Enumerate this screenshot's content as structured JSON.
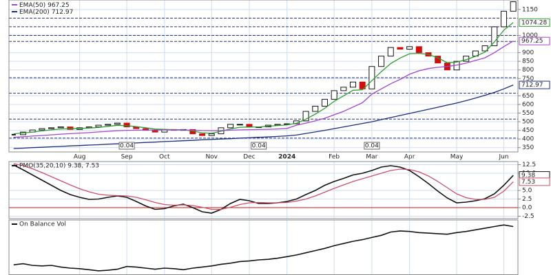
{
  "chart_data": [
    {
      "type": "candlestick",
      "categories": [
        null,
        null,
        null,
        null,
        null,
        null,
        null,
        "Aug",
        null,
        null,
        null,
        null,
        "Sep",
        null,
        null,
        null,
        "Oct",
        null,
        null,
        null,
        null,
        "Nov",
        null,
        null,
        null,
        "Dec",
        null,
        null,
        null,
        "2024",
        null,
        null,
        null,
        null,
        "Feb",
        null,
        null,
        null,
        "Mar",
        null,
        null,
        null,
        "Apr",
        null,
        null,
        null,
        null,
        "May",
        null,
        null,
        null,
        null,
        "Jun",
        null
      ],
      "close": [
        425,
        440,
        452,
        460,
        465,
        470,
        455,
        465,
        470,
        480,
        485,
        492,
        470,
        460,
        450,
        440,
        455,
        450,
        455,
        430,
        420,
        430,
        465,
        485,
        485,
        470,
        470,
        480,
        485,
        488,
        505,
        560,
        590,
        630,
        680,
        700,
        730,
        690,
        820,
        880,
        930,
        920,
        935,
        900,
        880,
        840,
        800,
        850,
        880,
        910,
        940,
        1050,
        1140,
        1195
      ],
      "up_color": "#111111",
      "down_color": "#d01010",
      "series": [
        {
          "color": "#2e9a2e",
          "values": [
            430,
            435,
            440,
            447,
            453,
            458,
            459,
            461,
            463,
            467,
            473,
            479,
            477,
            472,
            465,
            457,
            456,
            454,
            454,
            446,
            436,
            433,
            445,
            458,
            468,
            469,
            470,
            474,
            478,
            482,
            491,
            515,
            544,
            578,
            618,
            650,
            682,
            685,
            738,
            790,
            837,
            869,
            894,
            896,
            890,
            870,
            842,
            845,
            859,
            879,
            903,
            962,
            1030,
            1074.28
          ]
        },
        {
          "name": "EMA(50)",
          "color": "#a046c8",
          "values": [
            410,
            413,
            417,
            420,
            424,
            428,
            431,
            434,
            437,
            441,
            444,
            448,
            450,
            451,
            452,
            452,
            452,
            452,
            452,
            451,
            449,
            448,
            449,
            451,
            453,
            454,
            455,
            456,
            458,
            461,
            480,
            492,
            505,
            520,
            540,
            560,
            585,
            610,
            660,
            690,
            720,
            745,
            775,
            795,
            808,
            815,
            820,
            828,
            840,
            855,
            870,
            900,
            935,
            967.25
          ]
        },
        {
          "name": "EMA(200)",
          "color": "#1c2a78",
          "values": [
            345,
            347,
            350,
            352,
            355,
            357,
            360,
            362,
            365,
            367,
            370,
            372,
            375,
            377,
            380,
            382,
            385,
            387,
            390,
            392,
            395,
            397,
            400,
            402,
            405,
            407,
            410,
            412,
            415,
            418,
            423,
            432,
            441,
            450,
            460,
            470,
            480,
            490,
            500,
            512,
            524,
            536,
            548,
            560,
            572,
            584,
            596,
            608,
            622,
            637,
            653,
            670,
            690,
            712.97
          ]
        }
      ],
      "dividends": [
        null,
        null,
        null,
        null,
        null,
        null,
        null,
        null,
        null,
        null,
        null,
        null,
        0.04,
        null,
        null,
        null,
        null,
        null,
        null,
        null,
        null,
        null,
        null,
        null,
        null,
        null,
        0.04,
        null,
        null,
        null,
        null,
        null,
        null,
        null,
        null,
        null,
        null,
        null,
        0.04,
        null,
        null,
        null,
        null,
        null,
        null,
        null,
        null,
        null,
        null,
        null,
        null,
        null,
        null,
        null
      ],
      "reference_lines": [
        1100,
        1050,
        1000,
        965,
        755,
        665,
        515,
        405
      ],
      "reference_color": "#23317a",
      "ylim": [
        325,
        1205
      ],
      "yticks": [
        350,
        400,
        450,
        500,
        550,
        600,
        650,
        750,
        800,
        850,
        900,
        1000,
        1150
      ],
      "grid": true
    },
    {
      "type": "line",
      "title": "PMO(35,20,10) 9.38, 7.53",
      "series": [
        {
          "color": "#111111",
          "values": [
            12.4,
            11.0,
            9.5,
            8.0,
            6.5,
            5.0,
            3.8,
            3.0,
            2.4,
            2.5,
            3.0,
            3.4,
            3.0,
            1.8,
            0.5,
            -0.5,
            -0.3,
            0.5,
            1.0,
            0.0,
            -1.2,
            -1.6,
            -0.5,
            1.2,
            2.4,
            2.0,
            1.2,
            1.2,
            1.4,
            1.8,
            2.5,
            3.8,
            5.0,
            6.5,
            7.6,
            8.5,
            9.5,
            10.0,
            10.8,
            11.8,
            12.2,
            11.8,
            10.8,
            9.0,
            7.0,
            4.8,
            2.8,
            1.4,
            1.6,
            2.0,
            2.6,
            4.0,
            6.5,
            9.38
          ]
        },
        {
          "color": "#c8506a",
          "values": [
            12.8,
            12.2,
            11.3,
            10.2,
            9.0,
            7.8,
            6.6,
            5.5,
            4.6,
            3.9,
            3.6,
            3.5,
            3.4,
            3.0,
            2.3,
            1.5,
            0.9,
            0.7,
            0.8,
            0.6,
            0.1,
            -0.5,
            -0.5,
            0.1,
            0.9,
            1.4,
            1.5,
            1.4,
            1.4,
            1.5,
            1.9,
            2.5,
            3.4,
            4.5,
            5.6,
            6.6,
            7.6,
            8.4,
            9.2,
            10.0,
            10.8,
            11.2,
            11.1,
            10.4,
            9.2,
            7.6,
            5.8,
            4.0,
            2.9,
            2.4,
            2.4,
            3.0,
            4.8,
            7.53
          ]
        }
      ],
      "reference_lines": [
        0
      ],
      "reference_color": "#cc1111",
      "ylim": [
        -3.2,
        13.4
      ],
      "yticks": [
        12.5,
        {
          "value": 10,
          "label": "10.0"
        },
        {
          "value": 5,
          "label": "5.0"
        },
        2.5,
        {
          "value": 0,
          "label": "0.0"
        },
        -2.5
      ],
      "grid": true
    },
    {
      "type": "line",
      "title": "On Balance Vol",
      "series": [
        {
          "color": "#111111",
          "values": [
            18,
            20,
            17,
            16,
            17,
            14,
            12,
            11,
            9,
            7,
            8,
            10,
            15,
            14,
            12,
            10,
            12,
            11,
            9,
            12,
            14,
            16,
            19,
            21,
            24,
            25,
            27,
            28,
            30,
            33,
            36,
            40,
            44,
            48,
            53,
            57,
            61,
            64,
            68,
            72,
            78,
            80,
            79,
            77,
            76,
            75,
            74,
            77,
            79,
            82,
            85,
            88,
            91,
            88
          ]
        }
      ],
      "ylim": [
        0,
        100
      ],
      "grid": true
    }
  ]
}
